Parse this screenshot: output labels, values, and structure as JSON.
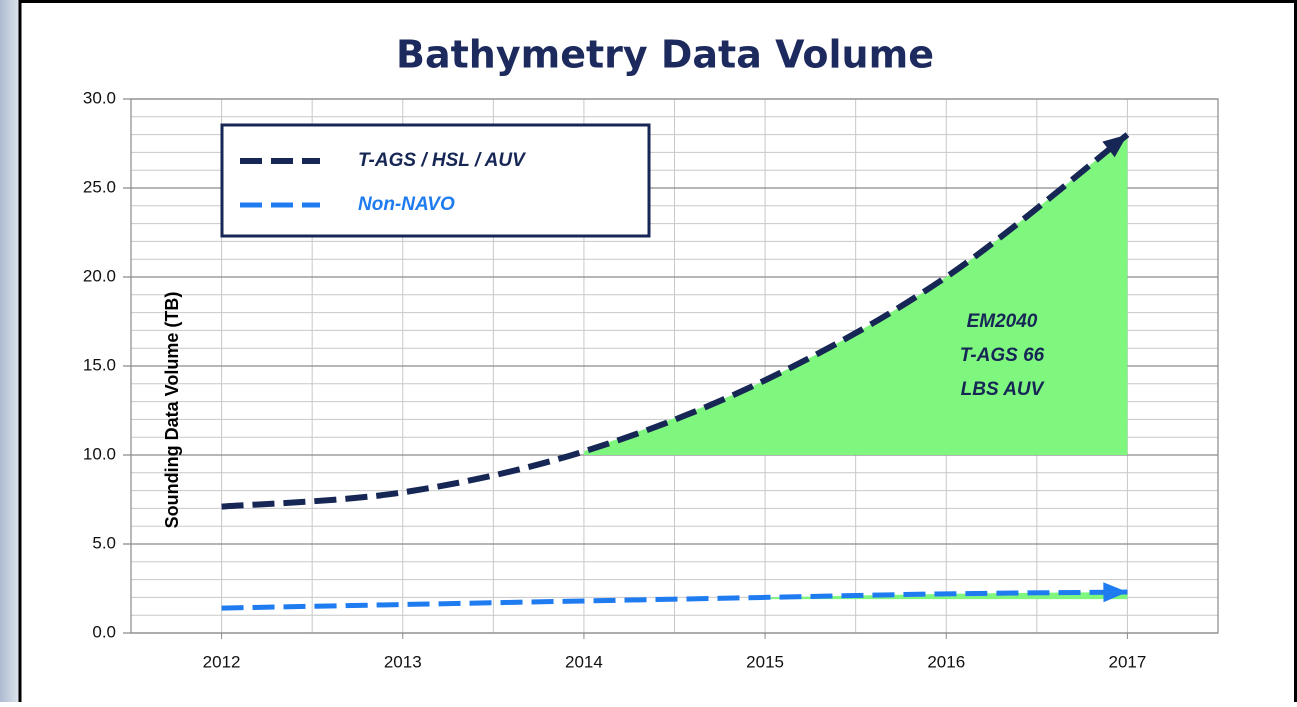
{
  "chart_data": {
    "type": "line",
    "title": "Bathymetry Data Volume",
    "y_label": "Sounding Data Volume (TB)",
    "x": [
      2012,
      2013,
      2014,
      2015,
      2016,
      2017
    ],
    "series": [
      {
        "name": "T-AGS / HSL / AUV",
        "color": "#172755",
        "values": [
          7.1,
          7.9,
          10.2,
          14.2,
          20.0,
          28.0
        ]
      },
      {
        "name": "Non-NAVO",
        "color": "#1f7bf0",
        "values": [
          1.4,
          1.6,
          1.8,
          2.0,
          2.2,
          2.3
        ]
      }
    ],
    "xlim": [
      2011.5,
      2017.5
    ],
    "xticks": [
      2012,
      2013,
      2014,
      2015,
      2016,
      2017
    ],
    "x_minor_grid": [
      2011.5,
      2012,
      2012.5,
      2013,
      2013.5,
      2014,
      2014.5,
      2015,
      2015.5,
      2016,
      2016.5,
      2017,
      2017.5
    ],
    "ylim": [
      0,
      30
    ],
    "yticks": [
      {
        "value": 0,
        "label": "0.0"
      },
      {
        "value": 5,
        "label": "5.0"
      },
      {
        "value": 10,
        "label": "10.0"
      },
      {
        "value": 15,
        "label": "15.0"
      },
      {
        "value": 20,
        "label": "20.0"
      },
      {
        "value": 25,
        "label": "25.0"
      },
      {
        "value": 30,
        "label": "30.0"
      }
    ],
    "y_minor_grid": [
      1,
      2,
      3,
      4,
      6,
      7,
      8,
      9,
      11,
      12,
      13,
      14,
      16,
      17,
      18,
      19,
      21,
      22,
      23,
      24,
      26,
      27,
      28,
      29
    ],
    "grid": true,
    "legend": "upper left",
    "shaded_regions": [
      {
        "series": 0,
        "x_start": 2014,
        "y_base": 10,
        "color": "#7ff77f"
      },
      {
        "series": 1,
        "x_start": 2015,
        "y_base": 1.9,
        "color": "#7ff77f"
      }
    ],
    "annotation": [
      "EM2040",
      "T-AGS 66",
      "LBS AUV"
    ]
  }
}
